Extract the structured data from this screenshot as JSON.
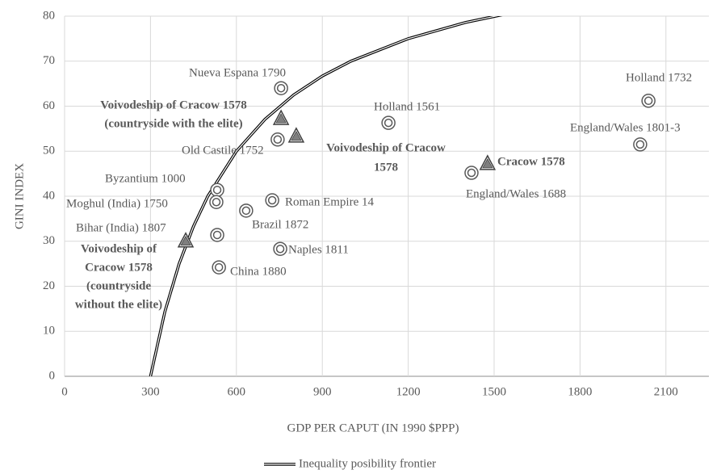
{
  "chart_data": {
    "type": "scatter",
    "xlabel": "GDP PER CAPUT (IN 1990 $PPP)",
    "ylabel": "GINI INDEX",
    "xlim": [
      0,
      2250
    ],
    "ylim": [
      0,
      80
    ],
    "xticks": [
      0,
      300,
      600,
      900,
      1200,
      1500,
      1800,
      2100
    ],
    "yticks": [
      0,
      10,
      20,
      30,
      40,
      50,
      60,
      70,
      80
    ],
    "grid": true,
    "points": [
      {
        "label": [
          "Nueva Espana 1790"
        ],
        "x": 756,
        "y": 64,
        "marker": "circle"
      },
      {
        "label": [
          "Holland 1732"
        ],
        "x": 2039,
        "y": 61.2,
        "marker": "circle"
      },
      {
        "label": [
          "Holland 1561"
        ],
        "x": 1131,
        "y": 56.3,
        "marker": "circle"
      },
      {
        "label": [
          "England/Wales 1801-3"
        ],
        "x": 2010,
        "y": 51.5,
        "marker": "circle"
      },
      {
        "label": [
          "Old Castile 1752"
        ],
        "x": 744,
        "y": 52.6,
        "marker": "circle"
      },
      {
        "label": [
          "Voivodeship of Cracow 1578",
          "(countryside with the elite)"
        ],
        "x": 756,
        "y": 57.2,
        "marker": "triangle"
      },
      {
        "label": [
          "Voivodeship of Cracow",
          "1578"
        ],
        "x": 809,
        "y": 53.3,
        "marker": "triangle"
      },
      {
        "label": [
          "Cracow 1578"
        ],
        "x": 1477,
        "y": 47.2,
        "marker": "triangle"
      },
      {
        "label": [
          "England/Wales 1688"
        ],
        "x": 1421,
        "y": 45.2,
        "marker": "circle"
      },
      {
        "label": [
          "Byzantium 1000"
        ],
        "x": 533,
        "y": 41.4,
        "marker": "circle"
      },
      {
        "label": [
          "Moghul (India) 1750"
        ],
        "x": 530,
        "y": 38.7,
        "marker": "circle"
      },
      {
        "label": [
          "Roman Empire 14"
        ],
        "x": 725,
        "y": 39.1,
        "marker": "circle"
      },
      {
        "label": [
          "Brazil 1872"
        ],
        "x": 634,
        "y": 36.8,
        "marker": "circle"
      },
      {
        "label": [
          "Bihar (India) 1807"
        ],
        "x": 533,
        "y": 31.4,
        "marker": "circle"
      },
      {
        "label": [
          "Naples 1811"
        ],
        "x": 753,
        "y": 28.3,
        "marker": "circle"
      },
      {
        "label": [
          "Voivodeship of",
          "Cracow 1578",
          "(countryside",
          "without the elite)"
        ],
        "x": 423,
        "y": 30,
        "marker": "triangle"
      },
      {
        "label": [
          "China 1880"
        ],
        "x": 539,
        "y": 24.2,
        "marker": "circle"
      }
    ],
    "series": [
      {
        "name": "Inequality posibility frontier",
        "color": "#000000",
        "x": [
          300,
          350,
          400,
          450,
          500,
          600,
          700,
          800,
          900,
          1000,
          1200,
          1400,
          1600
        ],
        "values": [
          0,
          14.3,
          25,
          33.3,
          40,
          50,
          57.1,
          62.5,
          66.7,
          70,
          75,
          78.6,
          81.25
        ]
      }
    ]
  }
}
